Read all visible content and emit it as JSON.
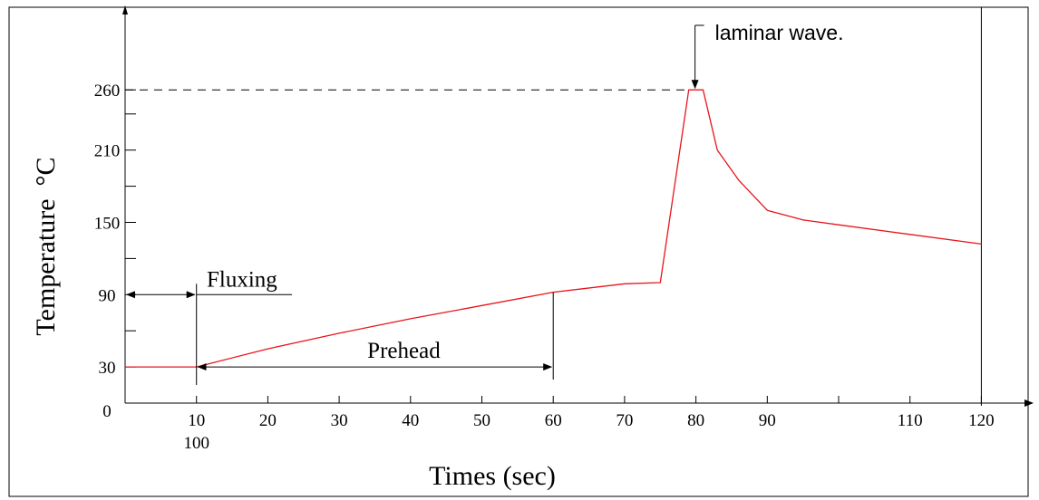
{
  "chart_data": {
    "type": "line",
    "xlabel": "Times (sec)",
    "ylabel": "Temperature",
    "ylabel_unit": "°C",
    "xlim": [
      0,
      120
    ],
    "ylim": [
      0,
      300
    ],
    "x_ticks": [
      10,
      20,
      30,
      40,
      50,
      60,
      70,
      80,
      90,
      110,
      120
    ],
    "x_tick_labels": [
      "10",
      "20",
      "30",
      "40",
      "50",
      "60",
      "70",
      "80",
      "90",
      "110",
      "120"
    ],
    "x_minor_tick_at": 100,
    "x_extra_label": "100",
    "y_tick_labels": [
      {
        "value": 0,
        "label": "0"
      },
      {
        "value": 30,
        "label": "30"
      },
      {
        "value": 90,
        "label": "90"
      },
      {
        "value": 150,
        "label": "150"
      },
      {
        "value": 210,
        "label": "210"
      },
      {
        "value": 260,
        "label": "260"
      }
    ],
    "y_minor_ticks": [
      60,
      120,
      180,
      240
    ],
    "series": [
      {
        "color": "#e8141b",
        "x": [
          0,
          10,
          20,
          30,
          40,
          50,
          60,
          70,
          75,
          79,
          81,
          83,
          86,
          90,
          95,
          100,
          110,
          120
        ],
        "y": [
          30,
          30,
          45,
          58,
          70,
          81,
          92,
          99,
          100,
          260,
          260,
          210,
          185,
          160,
          152,
          148,
          140,
          132
        ]
      }
    ],
    "reference_line": {
      "y": 260,
      "x_end": 79,
      "style": "dashed"
    },
    "annotations": [
      {
        "text": "Fluxing",
        "kind": "interval",
        "x_start": 0,
        "x_end": 10,
        "y": 90
      },
      {
        "text": "Prehead",
        "kind": "interval",
        "x_start": 10,
        "x_end": 60,
        "y": 30
      },
      {
        "text": "laminar wave.",
        "kind": "arrow",
        "x": 80,
        "y": 260
      }
    ]
  }
}
